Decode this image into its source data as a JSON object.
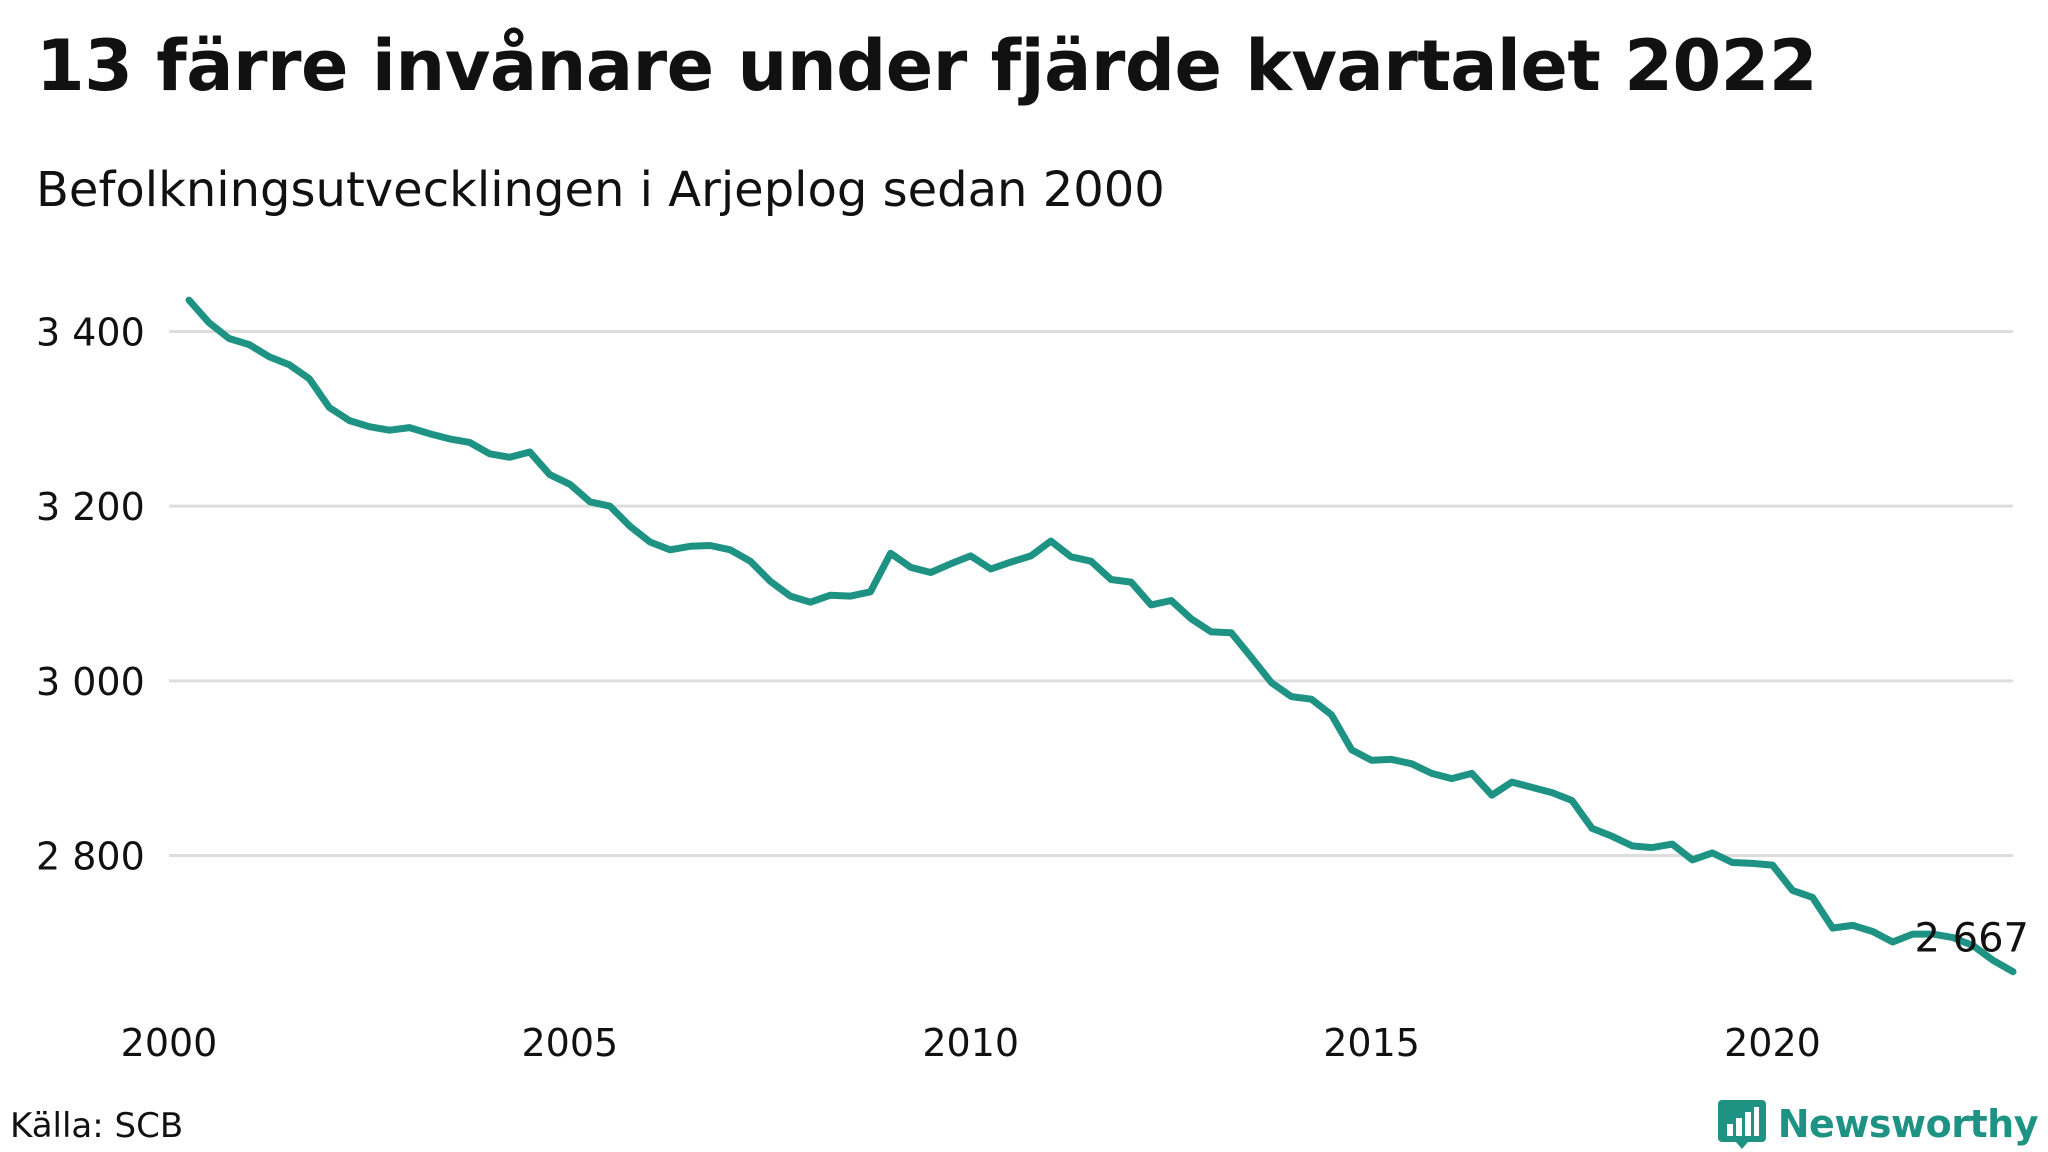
{
  "title": "13 färre invånare under fjärde kvartalet 2022",
  "subtitle": "Befolkningsutvecklingen i Arjeplog sedan 2000",
  "source": "Källa: SCB",
  "brand": {
    "name": "Newsworthy",
    "icon": "bar-chart-speech-bubble-icon"
  },
  "colors": {
    "line": "#1e9384",
    "grid": "#dddddd",
    "text": "#111111",
    "brand": "#1e9384"
  },
  "chart_data": {
    "type": "line",
    "title": "13 färre invånare under fjärde kvartalet 2022",
    "subtitle": "Befolkningsutvecklingen i Arjeplog sedan 2000",
    "xlabel": "",
    "ylabel": "",
    "xlim": [
      2000,
      2023
    ],
    "ylim": [
      2650,
      3440
    ],
    "y_ticks": [
      2800,
      3000,
      3200,
      3400
    ],
    "y_tick_labels": [
      "2 800",
      "3 000",
      "3 200",
      "3 400"
    ],
    "x_ticks": [
      2000,
      2005,
      2010,
      2015,
      2020
    ],
    "x_tick_labels": [
      "2000",
      "2005",
      "2010",
      "2015",
      "2020"
    ],
    "grid": "horizontal",
    "end_label": "2 667",
    "series": [
      {
        "x": [
          2000.25,
          2000.5,
          2000.75,
          2001.0,
          2001.25,
          2001.5,
          2001.75,
          2002.0,
          2002.25,
          2002.5,
          2002.75,
          2003.0,
          2003.25,
          2003.5,
          2003.75,
          2004.0,
          2004.25,
          2004.5,
          2004.75,
          2005.0,
          2005.25,
          2005.5,
          2005.75,
          2006.0,
          2006.25,
          2006.5,
          2006.75,
          2007.0,
          2007.25,
          2007.5,
          2007.75,
          2008.0,
          2008.25,
          2008.5,
          2008.75,
          2009.0,
          2009.25,
          2009.5,
          2009.75,
          2010.0,
          2010.25,
          2010.5,
          2010.75,
          2011.0,
          2011.25,
          2011.5,
          2011.75,
          2012.0,
          2012.25,
          2012.5,
          2012.75,
          2013.0,
          2013.25,
          2013.5,
          2013.75,
          2014.0,
          2014.25,
          2014.5,
          2014.75,
          2015.0,
          2015.25,
          2015.5,
          2015.75,
          2016.0,
          2016.25,
          2016.5,
          2016.75,
          2017.0,
          2017.25,
          2017.5,
          2017.75,
          2018.0,
          2018.25,
          2018.5,
          2018.75,
          2019.0,
          2019.25,
          2019.5,
          2019.75,
          2020.0,
          2020.25,
          2020.5,
          2020.75,
          2021.0,
          2021.25,
          2021.5,
          2021.75,
          2022.0,
          2022.25,
          2022.5,
          2022.75,
          2023.0
        ],
        "values": [
          3436,
          3410,
          3392,
          3385,
          3371,
          3362,
          3346,
          3313,
          3298,
          3291,
          3287,
          3290,
          3283,
          3277,
          3273,
          3260,
          3256,
          3262,
          3236,
          3225,
          3205,
          3200,
          3177,
          3159,
          3150,
          3154,
          3155,
          3150,
          3137,
          3114,
          3097,
          3090,
          3098,
          3097,
          3102,
          3146,
          3130,
          3124,
          3134,
          3143,
          3128,
          3136,
          3143,
          3160,
          3142,
          3137,
          3116,
          3113,
          3087,
          3092,
          3071,
          3056,
          3055,
          3027,
          2998,
          2982,
          2979,
          2961,
          2921,
          2909,
          2910,
          2905,
          2894,
          2888,
          2894,
          2869,
          2884,
          2878,
          2872,
          2863,
          2831,
          2822,
          2811,
          2809,
          2813,
          2795,
          2803,
          2792,
          2791,
          2789,
          2760,
          2752,
          2717,
          2720,
          2713,
          2701,
          2710,
          2710,
          2706,
          2697,
          2680,
          2667
        ]
      }
    ]
  }
}
